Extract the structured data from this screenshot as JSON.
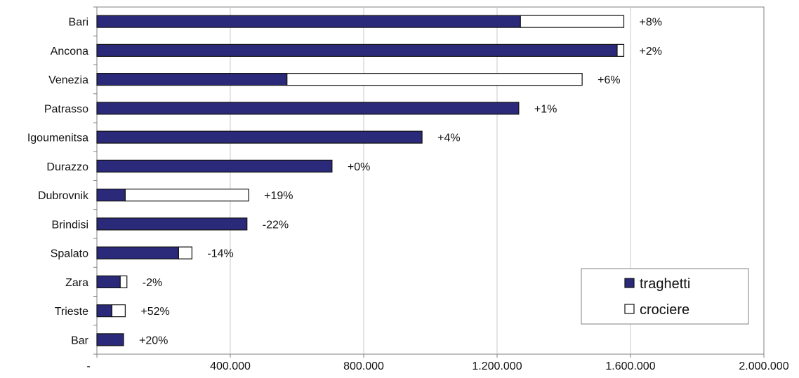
{
  "chart_data": {
    "type": "bar",
    "orientation": "horizontal",
    "stacked": true,
    "categories": [
      "Bari",
      "Ancona",
      "Venezia",
      "Patrasso",
      "Igoumenitsa",
      "Durazzo",
      "Dubrovnik",
      "Brindisi",
      "Spalato",
      "Zara",
      "Trieste",
      "Bar"
    ],
    "series": [
      {
        "name": "traghetti",
        "color": "#2b2a7a",
        "values": [
          1270000,
          1560000,
          570000,
          1265000,
          975000,
          705000,
          85000,
          450000,
          245000,
          70000,
          45000,
          80000
        ]
      },
      {
        "name": "crociere",
        "color": "#ffffff",
        "values": [
          310000,
          20000,
          885000,
          0,
          0,
          0,
          370000,
          0,
          40000,
          20000,
          40000,
          0
        ]
      }
    ],
    "change_labels": [
      "+8%",
      "+2%",
      "+6%",
      "+1%",
      "+4%",
      "+0%",
      "+19%",
      "-22%",
      "-14%",
      "-2%",
      "+52%",
      "+20%"
    ],
    "x_ticks": [
      {
        "value": 0,
        "label": "-"
      },
      {
        "value": 400000,
        "label": "400.000"
      },
      {
        "value": 800000,
        "label": "800.000"
      },
      {
        "value": 1200000,
        "label": "1.200.000"
      },
      {
        "value": 1600000,
        "label": "1.600.000"
      },
      {
        "value": 2000000,
        "label": "2.000.000"
      }
    ],
    "xlim": [
      0,
      2000000
    ],
    "title": "",
    "xlabel": "",
    "ylabel": "",
    "grid": "vertical",
    "legend": "bottom-right"
  }
}
